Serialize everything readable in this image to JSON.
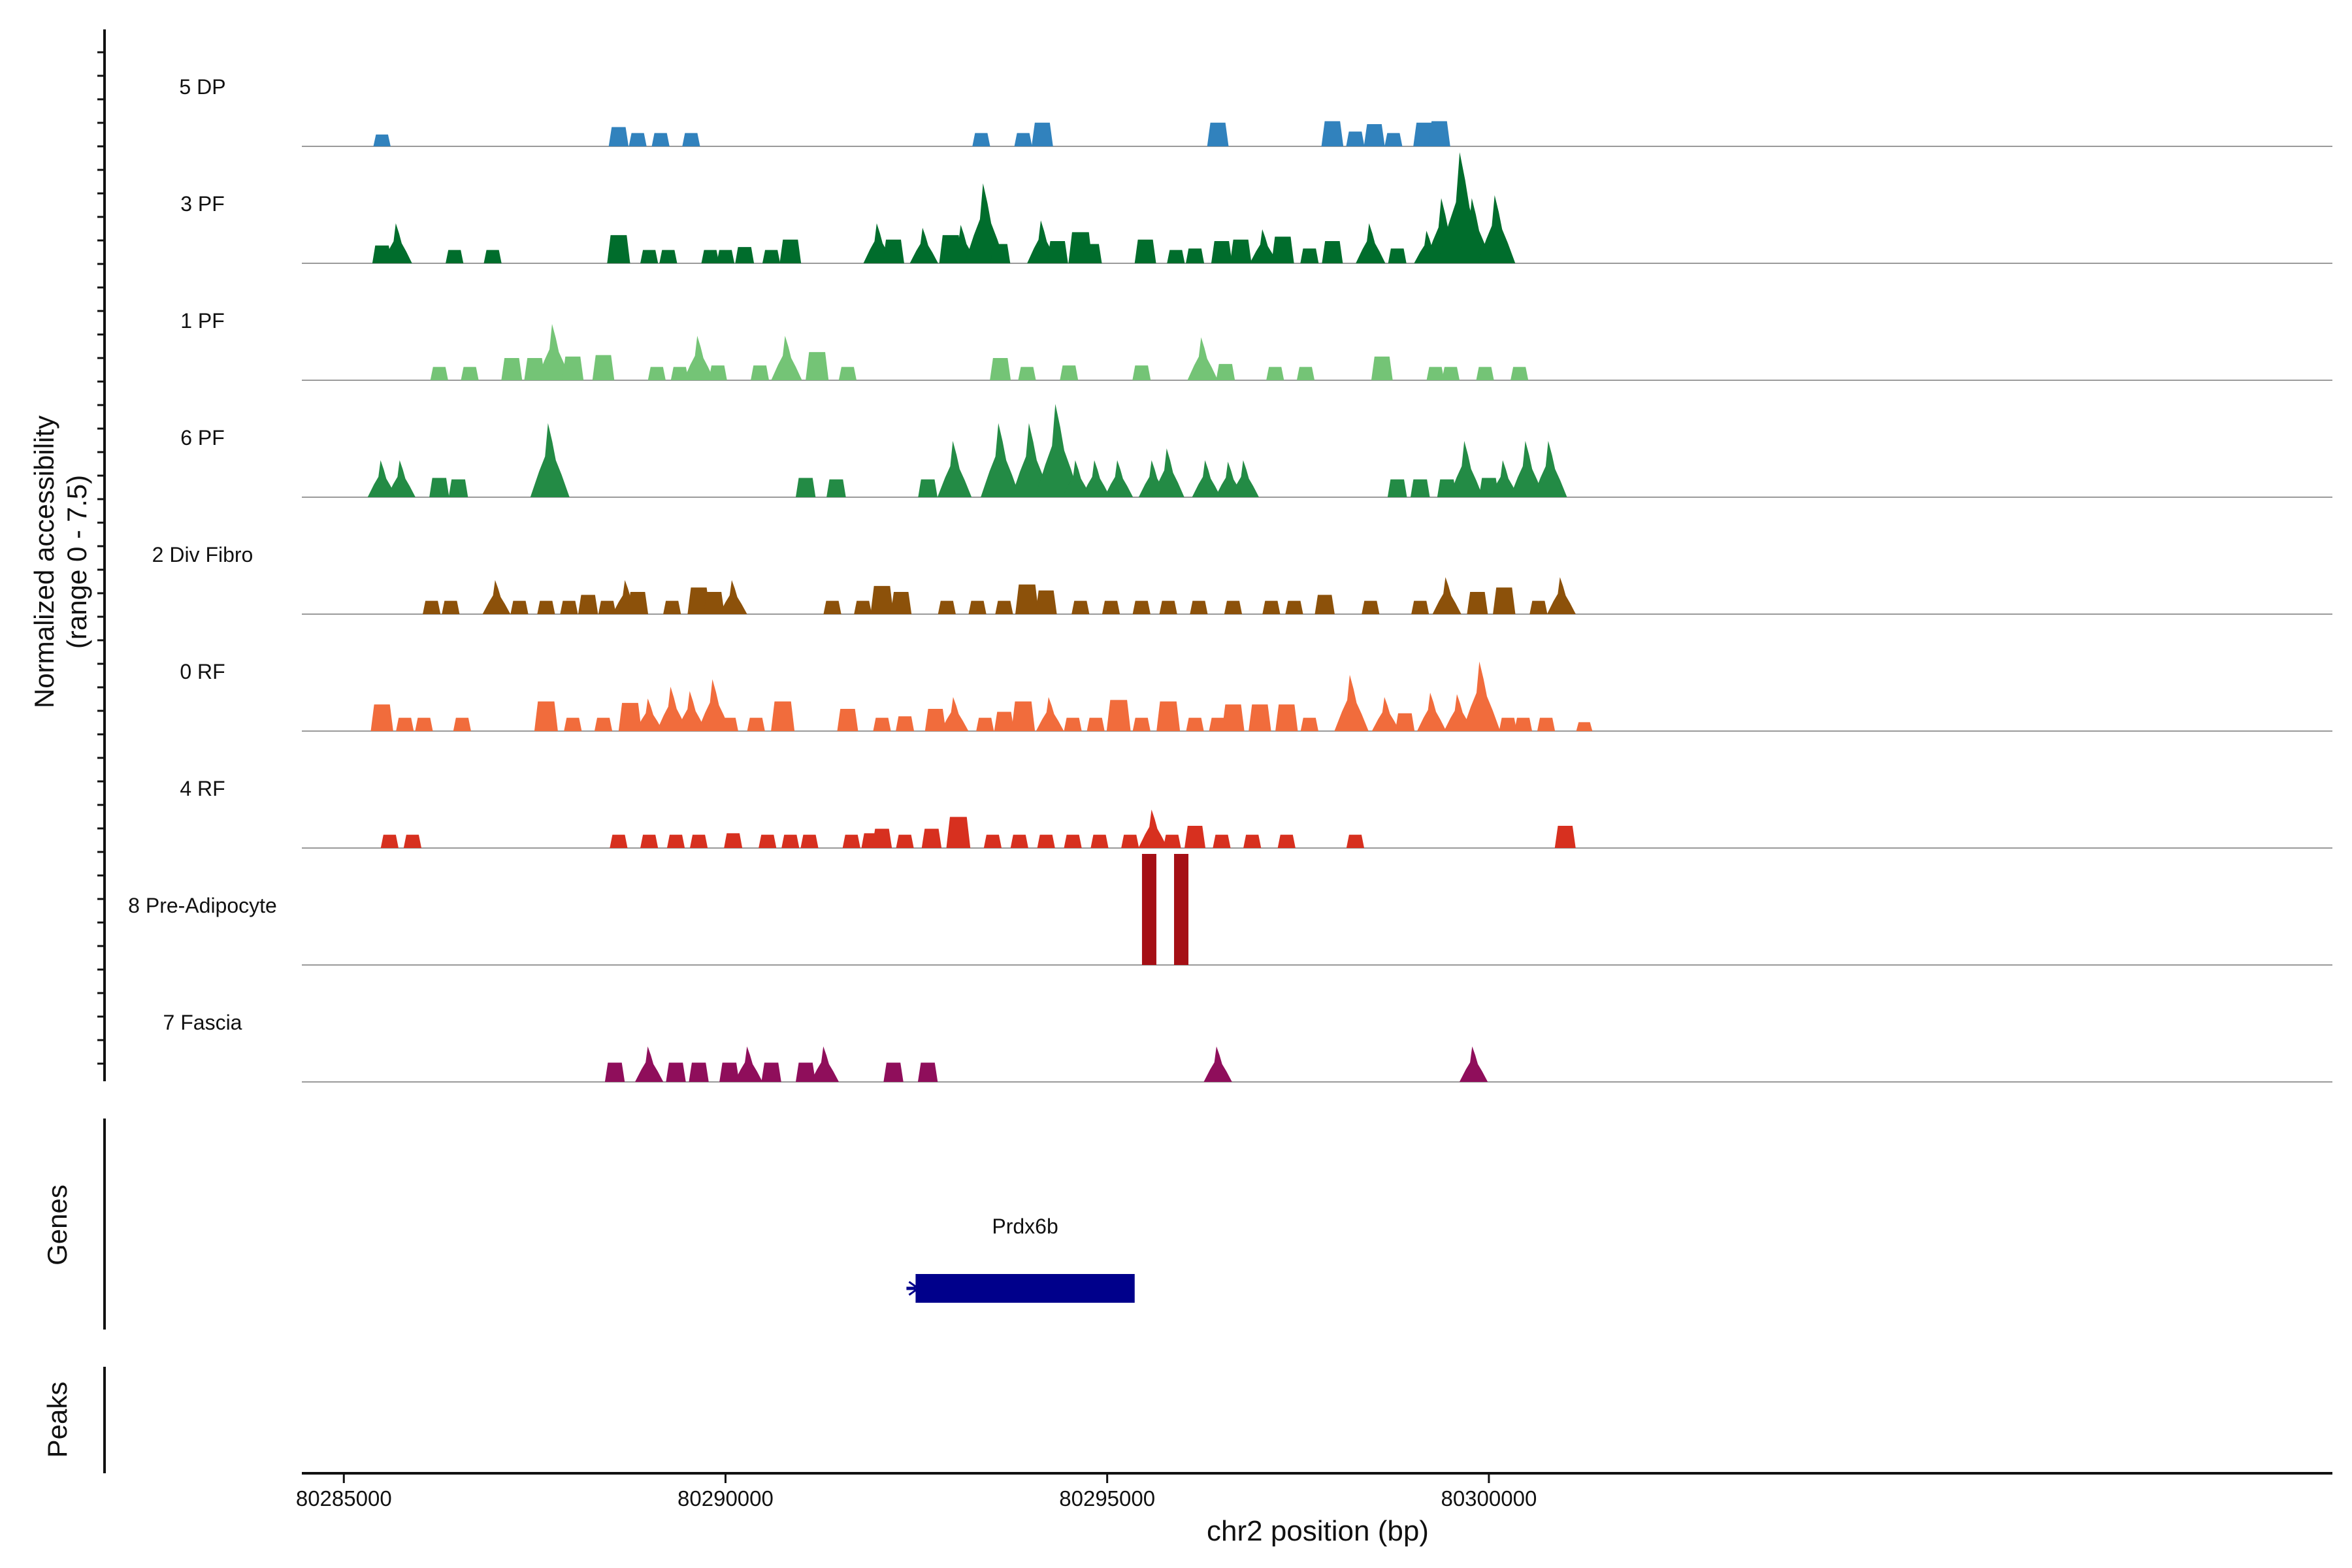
{
  "chart_data": {
    "type": "area",
    "title": "",
    "ylabel_line1": "Normalized accessibility",
    "ylabel_line2": "(range 0 - 7.5)",
    "y_range": [
      0,
      7.5
    ],
    "xlabel": "chr2 position (bp)",
    "xlim": [
      80284450,
      80311050
    ],
    "x_ticks": [
      80285000,
      80290000,
      80295000,
      80300000
    ],
    "x_tick_labels": [
      "80285000",
      "80290000",
      "80295000",
      "80300000"
    ],
    "genes_panel_label": "Genes",
    "peaks_panel_label": "Peaks",
    "genes": [
      {
        "name": "Prdx6b",
        "start": 80292490,
        "end": 80295360,
        "strand": "-",
        "color": "#00008b"
      }
    ],
    "peaks": [],
    "tracks": [
      {
        "name": "5 DP",
        "color": "#3182bd",
        "peaks": [
          [
            80285500,
            0.8
          ],
          [
            80288600,
            1.3
          ],
          [
            80288850,
            0.9
          ],
          [
            80289150,
            0.9
          ],
          [
            80289550,
            0.9
          ],
          [
            80293350,
            0.9
          ],
          [
            80293900,
            0.9
          ],
          [
            80294150,
            1.6
          ],
          [
            80296450,
            1.6
          ],
          [
            80297950,
            1.7
          ],
          [
            80298250,
            1.0
          ],
          [
            80298500,
            1.5
          ],
          [
            80298750,
            0.9
          ],
          [
            80299150,
            1.6
          ],
          [
            80299350,
            1.7
          ]
        ]
      },
      {
        "name": "3 PF",
        "color": "#006d2c",
        "peaks": [
          [
            80285500,
            1.2
          ],
          [
            80285700,
            2.7
          ],
          [
            80286450,
            0.9
          ],
          [
            80286950,
            0.9
          ],
          [
            80288600,
            1.9
          ],
          [
            80289000,
            0.9
          ],
          [
            80289250,
            0.9
          ],
          [
            80289800,
            0.9
          ],
          [
            80290000,
            0.9
          ],
          [
            80290250,
            1.1
          ],
          [
            80290600,
            0.9
          ],
          [
            80290850,
            1.6
          ],
          [
            80292000,
            2.7
          ],
          [
            80292200,
            1.6
          ],
          [
            80292600,
            2.4
          ],
          [
            80292950,
            1.9
          ],
          [
            80293100,
            2.6
          ],
          [
            80293400,
            5.4
          ],
          [
            80293600,
            1.3
          ],
          [
            80294150,
            2.9
          ],
          [
            80294350,
            1.5
          ],
          [
            80294650,
            2.1
          ],
          [
            80294800,
            1.3
          ],
          [
            80295500,
            1.6
          ],
          [
            80295900,
            0.9
          ],
          [
            80296150,
            1.0
          ],
          [
            80296500,
            1.5
          ],
          [
            80296750,
            1.6
          ],
          [
            80297050,
            2.3
          ],
          [
            80297300,
            1.8
          ],
          [
            80297650,
            1.0
          ],
          [
            80297950,
            1.5
          ],
          [
            80298450,
            2.7
          ],
          [
            80298800,
            1.0
          ],
          [
            80299200,
            2.2
          ],
          [
            80299400,
            4.4
          ],
          [
            80299650,
            7.5
          ],
          [
            80299800,
            4.4
          ],
          [
            80300100,
            4.6
          ]
        ]
      },
      {
        "name": "1 PF",
        "color": "#74c476",
        "peaks": [
          [
            80286250,
            0.9
          ],
          [
            80286650,
            0.9
          ],
          [
            80287200,
            1.5
          ],
          [
            80287500,
            1.5
          ],
          [
            80287750,
            3.8
          ],
          [
            80288000,
            1.6
          ],
          [
            80288400,
            1.7
          ],
          [
            80289100,
            0.9
          ],
          [
            80289400,
            0.9
          ],
          [
            80289650,
            3.0
          ],
          [
            80289900,
            1.0
          ],
          [
            80290450,
            1.0
          ],
          [
            80290800,
            3.0
          ],
          [
            80291200,
            1.9
          ],
          [
            80291600,
            0.9
          ],
          [
            80293600,
            1.5
          ],
          [
            80293950,
            0.9
          ],
          [
            80294500,
            1.0
          ],
          [
            80295450,
            1.0
          ],
          [
            80296250,
            2.9
          ],
          [
            80296550,
            1.1
          ],
          [
            80297200,
            0.9
          ],
          [
            80297600,
            0.9
          ],
          [
            80298600,
            1.6
          ],
          [
            80299300,
            0.9
          ],
          [
            80299500,
            0.9
          ],
          [
            80299950,
            0.9
          ],
          [
            80300400,
            0.9
          ]
        ]
      },
      {
        "name": "6 PF",
        "color": "#238b45",
        "peaks": [
          [
            80285500,
            2.5
          ],
          [
            80285750,
            2.5
          ],
          [
            80286250,
            1.3
          ],
          [
            80286500,
            1.2
          ],
          [
            80287700,
            5.0
          ],
          [
            80291050,
            1.3
          ],
          [
            80291450,
            1.2
          ],
          [
            80292650,
            1.2
          ],
          [
            80293000,
            3.8
          ],
          [
            80293600,
            5.0
          ],
          [
            80294000,
            5.0
          ],
          [
            80294350,
            6.3
          ],
          [
            80294600,
            2.5
          ],
          [
            80294850,
            2.5
          ],
          [
            80295150,
            2.5
          ],
          [
            80295600,
            2.5
          ],
          [
            80295800,
            3.3
          ],
          [
            80296300,
            2.5
          ],
          [
            80296600,
            2.4
          ],
          [
            80296800,
            2.5
          ],
          [
            80298800,
            1.2
          ],
          [
            80299100,
            1.2
          ],
          [
            80299450,
            1.2
          ],
          [
            80299700,
            3.8
          ],
          [
            80300000,
            1.3
          ],
          [
            80300200,
            2.5
          ],
          [
            80300500,
            3.8
          ],
          [
            80300800,
            3.8
          ]
        ]
      },
      {
        "name": "2 Div Fibro",
        "color": "#8c510a",
        "peaks": [
          [
            80286150,
            0.9
          ],
          [
            80286400,
            0.9
          ],
          [
            80287000,
            2.3
          ],
          [
            80287300,
            0.9
          ],
          [
            80287650,
            0.9
          ],
          [
            80287950,
            0.9
          ],
          [
            80288200,
            1.3
          ],
          [
            80288450,
            0.9
          ],
          [
            80288700,
            2.3
          ],
          [
            80288850,
            1.5
          ],
          [
            80289300,
            0.9
          ],
          [
            80289650,
            1.8
          ],
          [
            80289850,
            1.5
          ],
          [
            80290100,
            2.3
          ],
          [
            80291400,
            0.9
          ],
          [
            80291800,
            0.9
          ],
          [
            80292050,
            1.9
          ],
          [
            80292300,
            1.5
          ],
          [
            80292900,
            0.9
          ],
          [
            80293300,
            0.9
          ],
          [
            80293650,
            0.9
          ],
          [
            80293950,
            2.0
          ],
          [
            80294200,
            1.6
          ],
          [
            80294650,
            0.9
          ],
          [
            80295050,
            0.9
          ],
          [
            80295450,
            0.9
          ],
          [
            80295800,
            0.9
          ],
          [
            80296200,
            0.9
          ],
          [
            80296650,
            0.9
          ],
          [
            80297150,
            0.9
          ],
          [
            80297450,
            0.9
          ],
          [
            80297850,
            1.3
          ],
          [
            80298450,
            0.9
          ],
          [
            80299100,
            0.9
          ],
          [
            80299450,
            2.5
          ],
          [
            80299850,
            1.5
          ],
          [
            80300200,
            1.8
          ],
          [
            80300650,
            0.9
          ],
          [
            80300950,
            2.5
          ]
        ]
      },
      {
        "name": "0 RF",
        "color": "#f16c3c",
        "peaks": [
          [
            80285500,
            1.8
          ],
          [
            80285800,
            0.9
          ],
          [
            80286050,
            0.9
          ],
          [
            80286550,
            0.9
          ],
          [
            80287650,
            2.0
          ],
          [
            80288000,
            0.9
          ],
          [
            80288400,
            0.9
          ],
          [
            80288750,
            1.9
          ],
          [
            80289000,
            2.2
          ],
          [
            80289300,
            3.0
          ],
          [
            80289550,
            2.7
          ],
          [
            80289850,
            3.5
          ],
          [
            80290050,
            0.9
          ],
          [
            80290400,
            0.9
          ],
          [
            80290750,
            2.0
          ],
          [
            80291600,
            1.5
          ],
          [
            80292050,
            0.9
          ],
          [
            80292350,
            1.0
          ],
          [
            80292750,
            1.5
          ],
          [
            80293000,
            2.3
          ],
          [
            80293400,
            0.9
          ],
          [
            80293650,
            1.3
          ],
          [
            80293900,
            2.0
          ],
          [
            80294250,
            2.3
          ],
          [
            80294550,
            0.9
          ],
          [
            80294850,
            0.9
          ],
          [
            80295150,
            2.1
          ],
          [
            80295450,
            0.9
          ],
          [
            80295800,
            2.0
          ],
          [
            80296150,
            0.9
          ],
          [
            80296450,
            0.9
          ],
          [
            80296650,
            1.8
          ],
          [
            80297000,
            1.8
          ],
          [
            80297350,
            1.8
          ],
          [
            80297650,
            0.9
          ],
          [
            80298200,
            3.8
          ],
          [
            80298650,
            2.3
          ],
          [
            80298900,
            1.2
          ],
          [
            80299250,
            2.6
          ],
          [
            80299600,
            2.5
          ],
          [
            80299900,
            4.7
          ],
          [
            80300250,
            0.9
          ],
          [
            80300450,
            0.9
          ],
          [
            80300750,
            0.9
          ],
          [
            80301250,
            0.6
          ]
        ]
      },
      {
        "name": "4 RF",
        "color": "#d7301f",
        "peaks": [
          [
            80285600,
            0.9
          ],
          [
            80285900,
            0.9
          ],
          [
            80288600,
            0.9
          ],
          [
            80289000,
            0.9
          ],
          [
            80289350,
            0.9
          ],
          [
            80289650,
            0.9
          ],
          [
            80290100,
            1.0
          ],
          [
            80290550,
            0.9
          ],
          [
            80290850,
            0.9
          ],
          [
            80291100,
            0.9
          ],
          [
            80291650,
            0.9
          ],
          [
            80291900,
            1.0
          ],
          [
            80292050,
            1.3
          ],
          [
            80292350,
            0.9
          ],
          [
            80292700,
            1.3
          ],
          [
            80293050,
            2.1
          ],
          [
            80293500,
            0.9
          ],
          [
            80293850,
            0.9
          ],
          [
            80294200,
            0.9
          ],
          [
            80294550,
            0.9
          ],
          [
            80294900,
            0.9
          ],
          [
            80295300,
            0.9
          ],
          [
            80295600,
            2.6
          ],
          [
            80295850,
            0.9
          ],
          [
            80296150,
            1.5
          ],
          [
            80296500,
            0.9
          ],
          [
            80296900,
            0.9
          ],
          [
            80297350,
            0.9
          ],
          [
            80298250,
            0.9
          ],
          [
            80301000,
            1.5
          ]
        ]
      },
      {
        "name": "8 Pre-Adipocyte",
        "color": "#a50f15",
        "peaks": [
          [
            80295550,
            7.5
          ],
          [
            80295970,
            7.5
          ]
        ]
      },
      {
        "name": "7 Fascia",
        "color": "#8f0e5b",
        "peaks": [
          [
            80288550,
            1.3
          ],
          [
            80289000,
            2.4
          ],
          [
            80289350,
            1.3
          ],
          [
            80289650,
            1.3
          ],
          [
            80290050,
            1.3
          ],
          [
            80290300,
            2.4
          ],
          [
            80290600,
            1.3
          ],
          [
            80291050,
            1.3
          ],
          [
            80291300,
            2.4
          ],
          [
            80292200,
            1.3
          ],
          [
            80292650,
            1.3
          ],
          [
            80296450,
            2.4
          ],
          [
            80299800,
            2.4
          ]
        ]
      }
    ]
  }
}
